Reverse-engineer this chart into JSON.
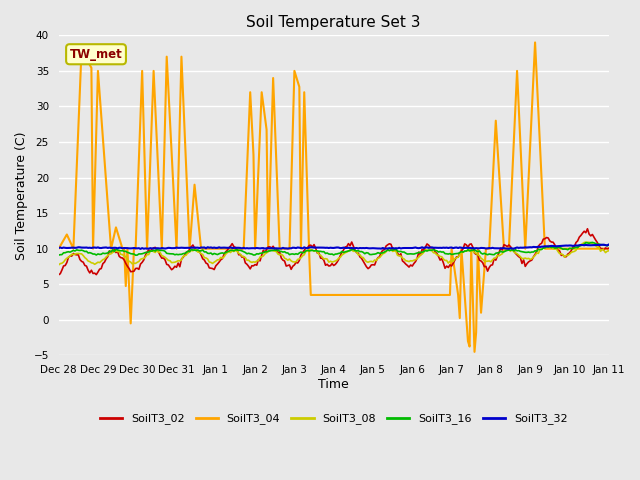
{
  "title": "Soil Temperature Set 3",
  "xlabel": "Time",
  "ylabel": "Soil Temperature (C)",
  "ylim": [
    -5,
    40
  ],
  "yticks": [
    -5,
    0,
    5,
    10,
    15,
    20,
    25,
    30,
    35,
    40
  ],
  "background_color": "#e8e8e8",
  "plot_bg_color": "#e8e8e8",
  "grid_color": "white",
  "annotation_text": "TW_met",
  "annotation_fgcolor": "#8b0000",
  "annotation_bgcolor": "#ffffcc",
  "annotation_edgecolor": "#b8b800",
  "series": {
    "SoilT3_02": {
      "color": "#cc0000",
      "linewidth": 1.2
    },
    "SoilT3_04": {
      "color": "#ffa500",
      "linewidth": 1.5
    },
    "SoilT3_08": {
      "color": "#cccc00",
      "linewidth": 1.2
    },
    "SoilT3_16": {
      "color": "#00bb00",
      "linewidth": 1.2
    },
    "SoilT3_32": {
      "color": "#0000cc",
      "linewidth": 1.5
    }
  },
  "x_tick_labels": [
    "Dec 28",
    "Dec 29",
    "Dec 30",
    "Dec 31",
    "Jan 1",
    "Jan 2",
    "Jan 3",
    "Jan 4",
    "Jan 5",
    "Jan 6",
    "Jan 7",
    "Jan 8",
    "Jan 9",
    "Jan 10",
    "Jan 11"
  ],
  "num_points": 337
}
